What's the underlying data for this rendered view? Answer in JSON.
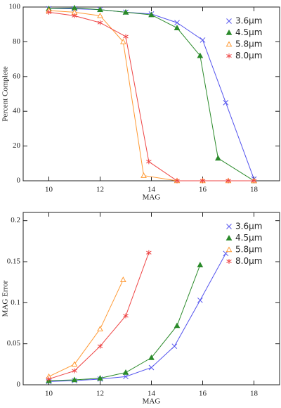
{
  "chart_data": [
    {
      "type": "line",
      "ylabel": "Percent Complete",
      "xlabel": "MAG",
      "xlim": [
        9,
        19
      ],
      "xticks": [
        10,
        12,
        14,
        16,
        18
      ],
      "ylim": [
        0,
        100
      ],
      "yticks": [
        0,
        20,
        40,
        60,
        80,
        100
      ],
      "legend": "upper right",
      "series": [
        {
          "name": "3.6μm",
          "color": "#5555ee",
          "marker": "x",
          "x": [
            10,
            11,
            12,
            13,
            14,
            15,
            16,
            16.9,
            18
          ],
          "values": [
            99,
            99,
            98.5,
            97,
            96,
            91,
            81,
            45,
            1
          ]
        },
        {
          "name": "4.5μm",
          "color": "#2a8a2a",
          "marker": "triangle",
          "x": [
            10,
            11,
            12,
            13,
            14,
            15,
            15.9,
            16.6,
            18
          ],
          "values": [
            99,
            99.5,
            98.5,
            97,
            95.5,
            88,
            72,
            13,
            0
          ]
        },
        {
          "name": "5.8μm",
          "color": "#ff9933",
          "marker": "triangle-open",
          "x": [
            10,
            11,
            12,
            12.9,
            13.7,
            15,
            16,
            17,
            18
          ],
          "values": [
            98,
            97,
            95,
            80,
            3,
            0,
            0,
            0,
            0
          ]
        },
        {
          "name": "8.0μm",
          "color": "#ee4444",
          "marker": "asterisk",
          "x": [
            10,
            11,
            12,
            13,
            13.9,
            15,
            16,
            17,
            18
          ],
          "values": [
            97,
            95,
            91,
            83,
            11,
            0,
            0,
            0,
            0
          ]
        }
      ]
    },
    {
      "type": "line",
      "ylabel": "MAG Error",
      "xlabel": "MAG",
      "xlim": [
        9,
        19
      ],
      "xticks": [
        10,
        12,
        14,
        16,
        18
      ],
      "ylim": [
        0,
        0.21
      ],
      "yticks": [
        0,
        0.05,
        0.1,
        0.15,
        0.2
      ],
      "legend": "upper right",
      "series": [
        {
          "name": "3.6μm",
          "color": "#5555ee",
          "marker": "x",
          "x": [
            10,
            11,
            12,
            13,
            14,
            14.9,
            15.9,
            16.9
          ],
          "values": [
            0.004,
            0.005,
            0.007,
            0.01,
            0.021,
            0.047,
            0.103,
            0.16
          ]
        },
        {
          "name": "4.5μm",
          "color": "#2a8a2a",
          "marker": "triangle",
          "x": [
            10,
            11,
            12,
            13,
            14,
            15,
            15.9
          ],
          "values": [
            0.005,
            0.006,
            0.008,
            0.015,
            0.033,
            0.072,
            0.146
          ]
        },
        {
          "name": "5.8μm",
          "color": "#ff9933",
          "marker": "triangle-open",
          "x": [
            10,
            11,
            12,
            12.9
          ],
          "values": [
            0.01,
            0.025,
            0.068,
            0.128
          ]
        },
        {
          "name": "8.0μm",
          "color": "#ee4444",
          "marker": "asterisk",
          "x": [
            10,
            11,
            12,
            13,
            13.9
          ],
          "values": [
            0.007,
            0.017,
            0.047,
            0.084,
            0.161
          ]
        }
      ]
    }
  ]
}
